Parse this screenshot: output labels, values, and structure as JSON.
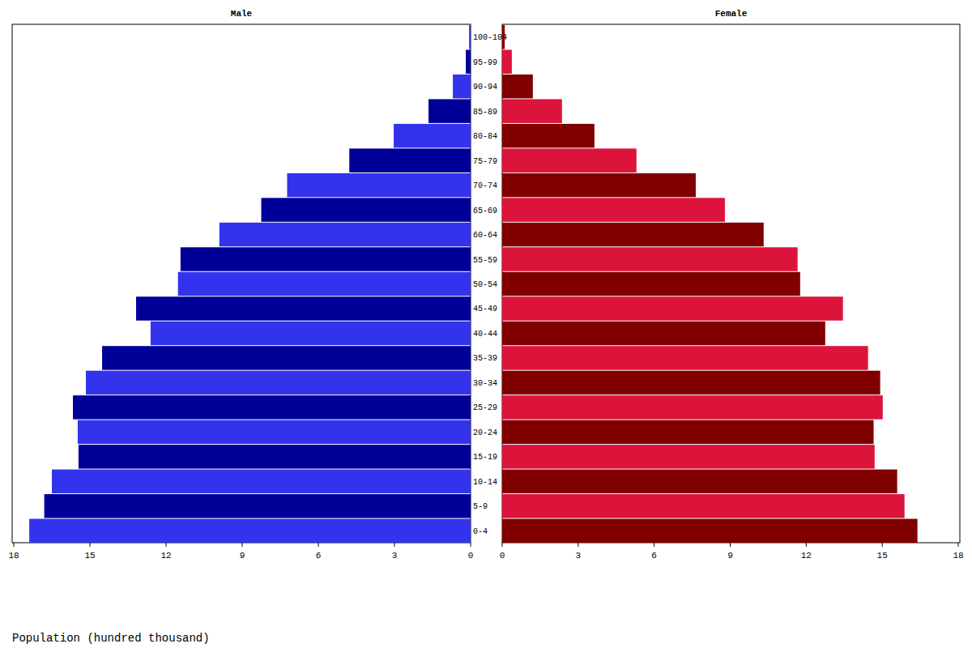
{
  "chart_data": {
    "type": "bar",
    "orientation": "horizontal",
    "x_label": "Population (hundred thousand)",
    "categories": [
      "0-4",
      "5-9",
      "10-14",
      "15-19",
      "20-24",
      "25-29",
      "30-34",
      "35-39",
      "40-44",
      "45-49",
      "50-54",
      "55-59",
      "60-64",
      "65-69",
      "70-74",
      "75-79",
      "80-84",
      "85-89",
      "90-94",
      "95-99",
      "100-104"
    ],
    "series": [
      {
        "name": "Male",
        "colors": [
          "#3333ee",
          "#000099",
          "#3333ee",
          "#000099",
          "#3333ee",
          "#000099",
          "#3333ee",
          "#000099",
          "#3333ee",
          "#000099",
          "#3333ee",
          "#000099",
          "#3333ee",
          "#000099",
          "#3333ee",
          "#000099",
          "#3333ee",
          "#000099",
          "#3333ee",
          "#000099",
          "#3333ee"
        ],
        "values": [
          17.39,
          16.8,
          16.5,
          15.45,
          15.48,
          15.67,
          15.16,
          14.52,
          12.61,
          13.18,
          11.53,
          11.43,
          9.9,
          8.25,
          7.23,
          4.78,
          3.03,
          1.66,
          0.7,
          0.19,
          0.06
        ]
      },
      {
        "name": "Female",
        "colors": [
          "#800000",
          "#dc143c",
          "#800000",
          "#dc143c",
          "#800000",
          "#dc143c",
          "#800000",
          "#dc143c",
          "#800000",
          "#dc143c",
          "#800000",
          "#dc143c",
          "#800000",
          "#dc143c",
          "#800000",
          "#dc143c",
          "#800000",
          "#dc143c",
          "#800000",
          "#dc143c",
          "#800000"
        ],
        "values": [
          16.39,
          15.88,
          15.59,
          14.7,
          14.66,
          15.02,
          14.92,
          14.44,
          12.75,
          13.45,
          11.76,
          11.66,
          10.32,
          8.79,
          7.64,
          5.3,
          3.64,
          2.36,
          1.21,
          0.38,
          0.1
        ]
      }
    ],
    "xlim": [
      0,
      18
    ],
    "xticks": [
      0,
      3,
      6,
      9,
      12,
      15,
      18
    ]
  }
}
